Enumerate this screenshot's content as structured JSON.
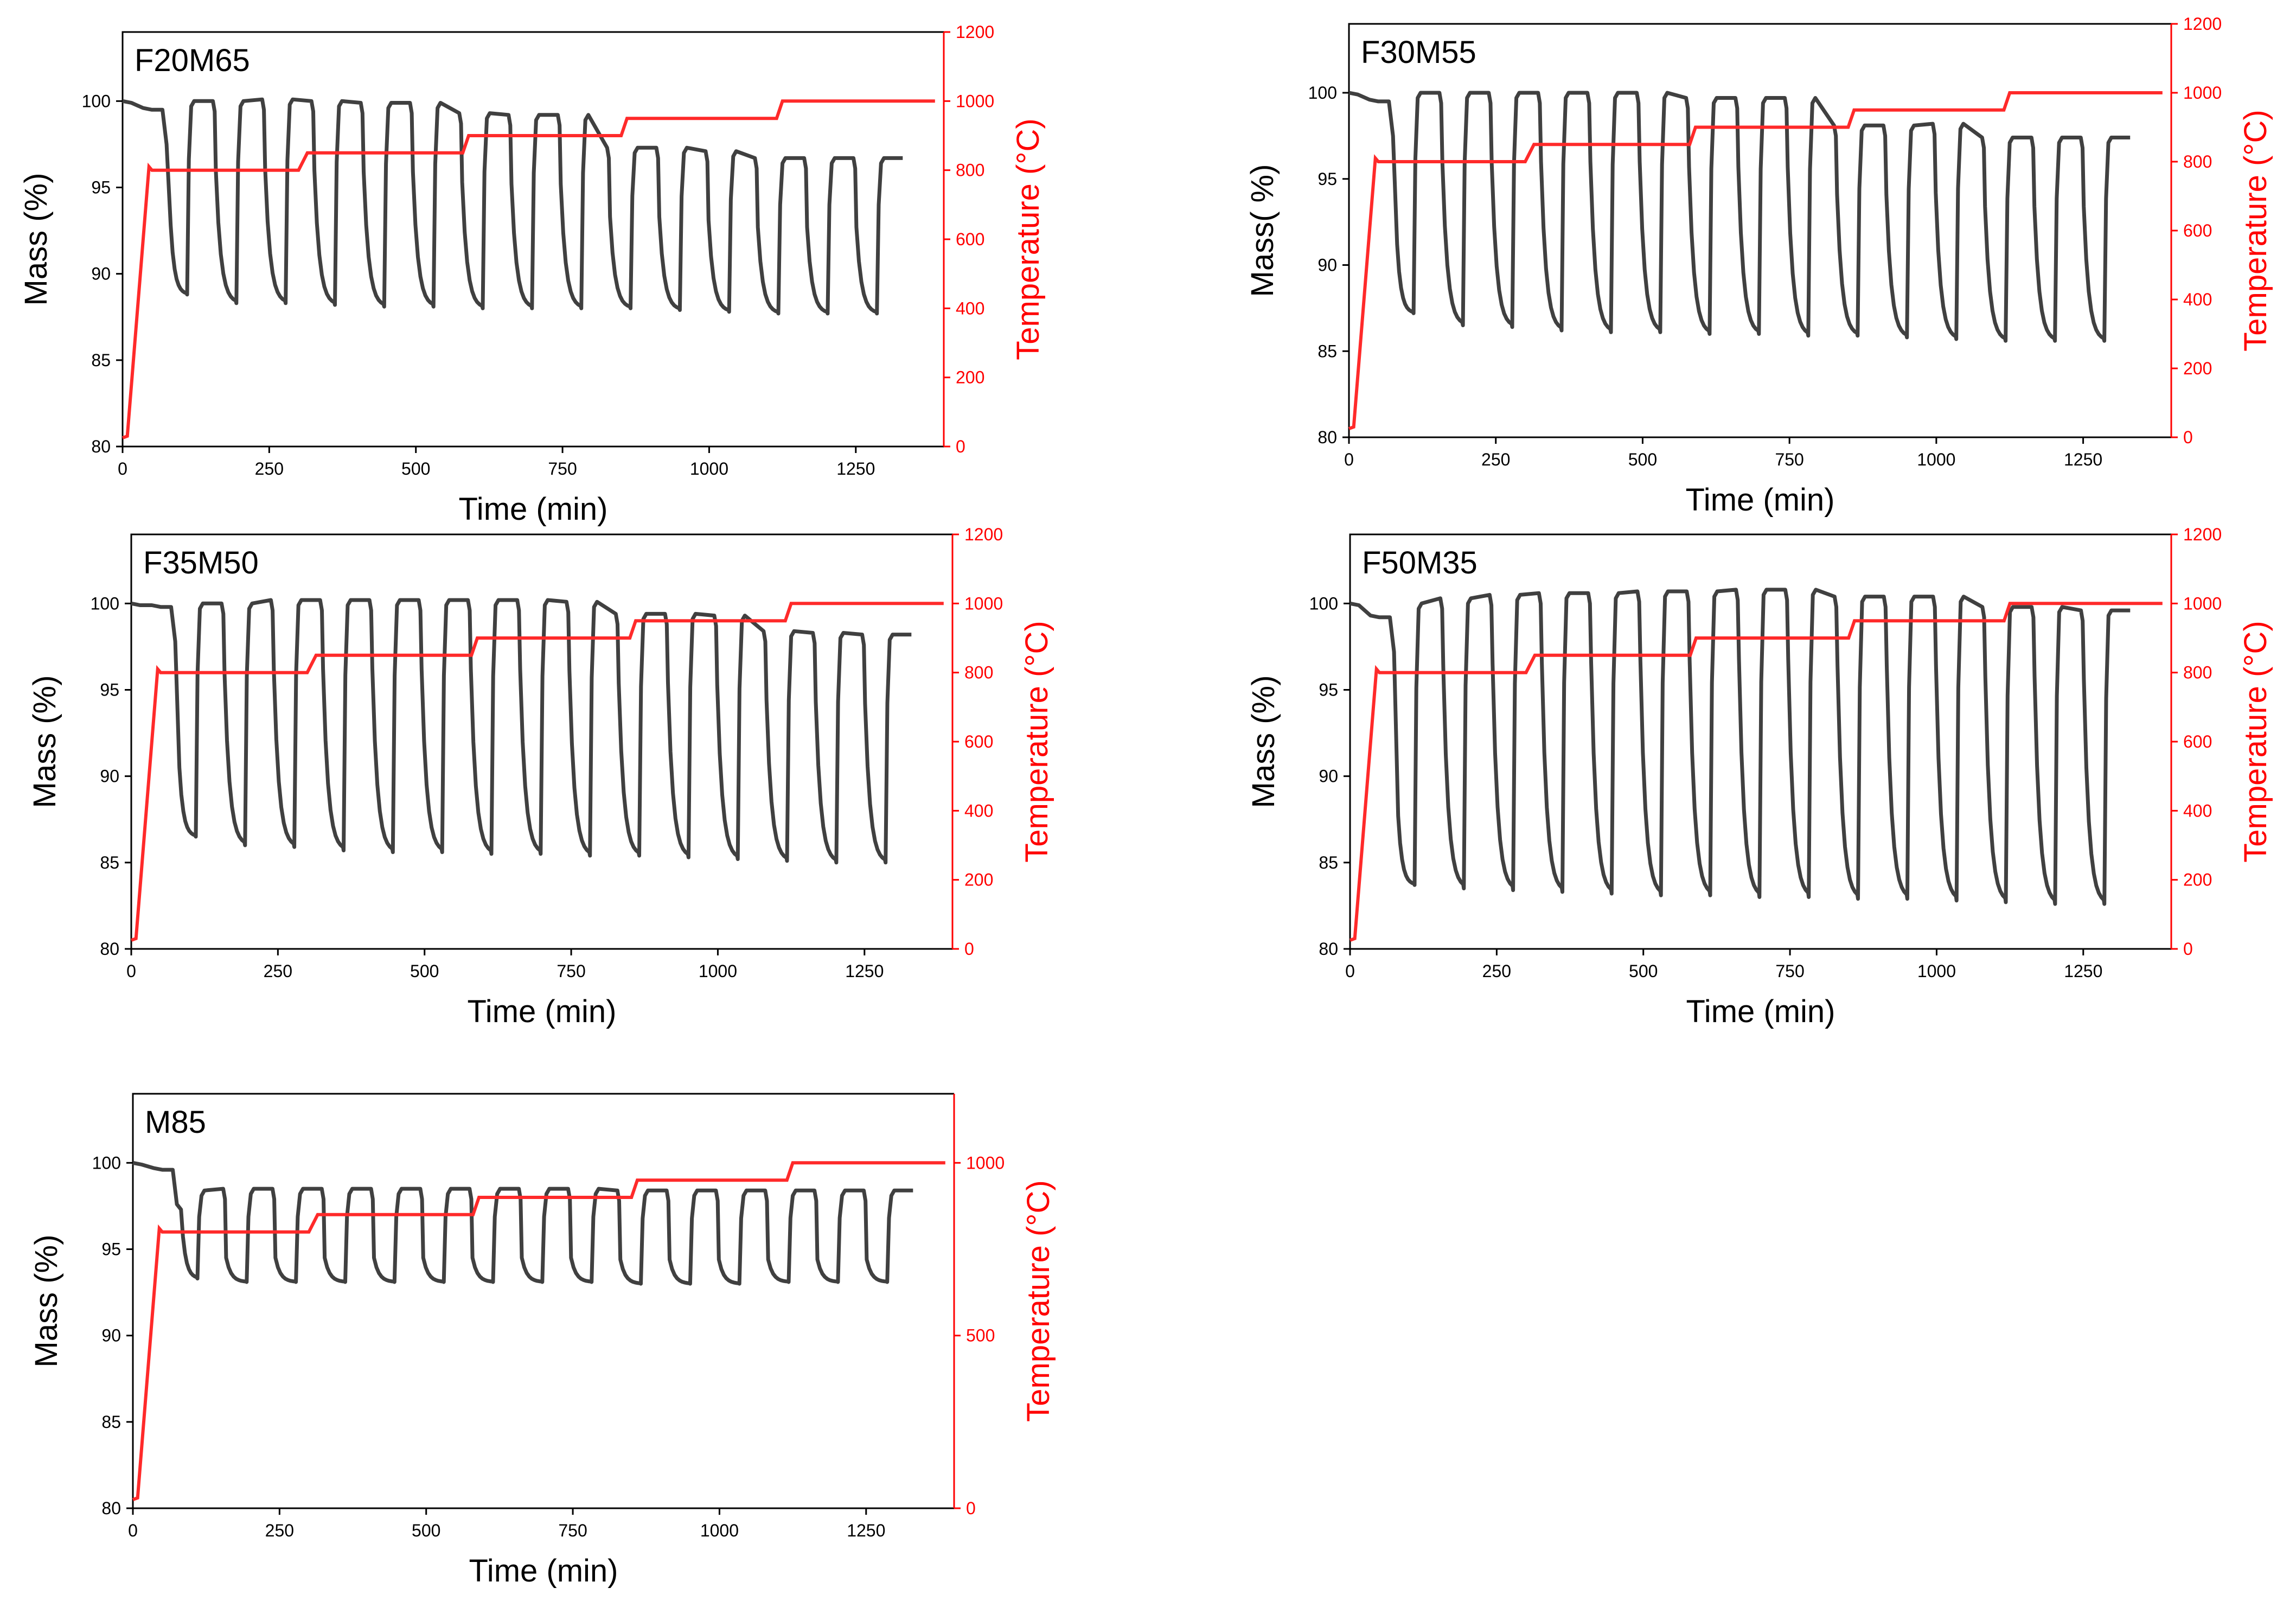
{
  "colors": {
    "mass_series": "#404040",
    "temperature_series": "#ff2a2a",
    "frame": "#000000",
    "temp_axis": "#ff0000"
  },
  "chart_data": [
    {
      "type": "line",
      "label": "F20M65",
      "xlabel": "Time (min)",
      "ylabel": "Mass (%)",
      "y2label": "Temperature (°C)",
      "xlim": [
        0,
        1400
      ],
      "ylim": [
        80,
        104
      ],
      "y2lim": [
        0,
        1200
      ],
      "xticks": [
        0,
        250,
        500,
        750,
        1000,
        1250
      ],
      "yticks": [
        80,
        85,
        90,
        95,
        100
      ],
      "y2ticks": [
        0,
        200,
        400,
        600,
        800,
        1000,
        1200
      ],
      "series": [
        {
          "name": "Mass",
          "axis": "left",
          "cycles": 15,
          "initial": 100,
          "mass_before_cycling": 99.5,
          "cycle_min": [
            88.8,
            88.3,
            88.3,
            88.2,
            88.1,
            88.1,
            88.0,
            88.0,
            88.0,
            88.0,
            87.9,
            87.8,
            87.7,
            87.7,
            87.7
          ],
          "cycle_max": [
            100.0,
            100.0,
            100.1,
            100.0,
            99.9,
            99.9,
            99.3,
            99.2,
            99.2,
            97.3,
            97.3,
            97.1,
            96.7,
            96.7,
            96.7
          ]
        },
        {
          "name": "Temperature",
          "axis": "right",
          "x": [
            0,
            8,
            45,
            50,
            300,
            315,
            580,
            590,
            850,
            860,
            1115,
            1125,
            1385
          ],
          "y": [
            25,
            30,
            810,
            800,
            800,
            850,
            850,
            900,
            900,
            950,
            950,
            1000,
            1000
          ]
        }
      ]
    },
    {
      "type": "line",
      "label": "F30M55",
      "xlabel": "Time (min)",
      "ylabel": "Mass( %)",
      "y2label": "Temperature (°C)",
      "xlim": [
        0,
        1400
      ],
      "ylim": [
        80,
        104
      ],
      "y2lim": [
        0,
        1200
      ],
      "xticks": [
        0,
        250,
        500,
        750,
        1000,
        1250
      ],
      "yticks": [
        80,
        85,
        90,
        95,
        100
      ],
      "y2ticks": [
        0,
        200,
        400,
        600,
        800,
        1000,
        1200
      ],
      "series": [
        {
          "name": "Mass",
          "axis": "left",
          "cycles": 15,
          "initial": 100,
          "mass_before_cycling": 99.5,
          "cycle_min": [
            87.2,
            86.5,
            86.4,
            86.2,
            86.1,
            86.1,
            86.0,
            86.0,
            85.9,
            85.9,
            85.8,
            85.7,
            85.6,
            85.6,
            85.6
          ],
          "cycle_max": [
            100.0,
            100.0,
            100.0,
            100.0,
            100.0,
            100.0,
            99.7,
            99.7,
            99.7,
            98.1,
            98.1,
            98.2,
            97.4,
            97.4,
            97.4
          ]
        },
        {
          "name": "Temperature",
          "axis": "right",
          "x": [
            0,
            8,
            45,
            50,
            300,
            315,
            580,
            590,
            850,
            860,
            1115,
            1125,
            1385
          ],
          "y": [
            25,
            30,
            810,
            800,
            800,
            850,
            850,
            900,
            900,
            950,
            950,
            1000,
            1000
          ]
        }
      ]
    },
    {
      "type": "line",
      "label": "F35M50",
      "xlabel": "Time (min)",
      "ylabel": "Mass (%)",
      "y2label": "Temperature (°C)",
      "xlim": [
        0,
        1400
      ],
      "ylim": [
        80,
        104
      ],
      "y2lim": [
        0,
        1200
      ],
      "xticks": [
        0,
        250,
        500,
        750,
        1000,
        1250
      ],
      "yticks": [
        80,
        85,
        90,
        95,
        100
      ],
      "y2ticks": [
        0,
        200,
        400,
        600,
        800,
        1000,
        1200
      ],
      "series": [
        {
          "name": "Mass",
          "axis": "left",
          "cycles": 15,
          "initial": 100,
          "mass_before_cycling": 99.8,
          "cycle_min": [
            86.5,
            86.0,
            85.9,
            85.7,
            85.6,
            85.6,
            85.5,
            85.5,
            85.4,
            85.4,
            85.3,
            85.2,
            85.1,
            85.0,
            85.0
          ],
          "cycle_max": [
            100.0,
            100.0,
            100.2,
            100.2,
            100.2,
            100.2,
            100.2,
            100.2,
            100.1,
            99.4,
            99.4,
            99.3,
            98.4,
            98.3,
            98.2
          ]
        },
        {
          "name": "Temperature",
          "axis": "right",
          "x": [
            0,
            8,
            45,
            50,
            300,
            315,
            580,
            590,
            850,
            860,
            1115,
            1125,
            1385
          ],
          "y": [
            25,
            30,
            810,
            800,
            800,
            850,
            850,
            900,
            900,
            950,
            950,
            1000,
            1000
          ]
        }
      ]
    },
    {
      "type": "line",
      "label": "F50M35",
      "xlabel": "Time (min)",
      "ylabel": "Mass (%)",
      "y2label": "Temperature (°C)",
      "xlim": [
        0,
        1400
      ],
      "ylim": [
        80,
        104
      ],
      "y2lim": [
        0,
        1200
      ],
      "xticks": [
        0,
        250,
        500,
        750,
        1000,
        1250
      ],
      "yticks": [
        80,
        85,
        90,
        95,
        100
      ],
      "y2ticks": [
        0,
        200,
        400,
        600,
        800,
        1000,
        1200
      ],
      "series": [
        {
          "name": "Mass",
          "axis": "left",
          "cycles": 15,
          "initial": 100,
          "mass_before_cycling": 99.2,
          "cycle_min": [
            83.7,
            83.5,
            83.4,
            83.3,
            83.2,
            83.1,
            83.1,
            83.0,
            83.0,
            82.9,
            82.9,
            82.8,
            82.7,
            82.6,
            82.6
          ],
          "cycle_max": [
            100.0,
            100.3,
            100.5,
            100.6,
            100.6,
            100.7,
            100.7,
            100.8,
            100.8,
            100.4,
            100.4,
            100.4,
            99.8,
            99.8,
            99.6
          ]
        },
        {
          "name": "Temperature",
          "axis": "right",
          "x": [
            0,
            8,
            45,
            50,
            300,
            315,
            580,
            590,
            850,
            860,
            1115,
            1125,
            1385
          ],
          "y": [
            25,
            30,
            810,
            800,
            800,
            850,
            850,
            900,
            900,
            950,
            950,
            1000,
            1000
          ]
        }
      ]
    },
    {
      "type": "line",
      "label": "M85",
      "xlabel": "Time (min)",
      "ylabel": "Mass (%)",
      "y2label": "Temperature (°C)",
      "xlim": [
        0,
        1400
      ],
      "ylim": [
        80,
        104
      ],
      "y2lim": [
        0,
        1200
      ],
      "xticks": [
        0,
        250,
        500,
        750,
        1000,
        1250
      ],
      "yticks": [
        80,
        85,
        90,
        95,
        100
      ],
      "y2ticks": [
        0,
        500,
        1000
      ],
      "series": [
        {
          "name": "Mass",
          "axis": "left",
          "cycles": 15,
          "initial": 100,
          "mass_before_cycling": 99.6,
          "cycle_min": [
            93.3,
            93.1,
            93.1,
            93.1,
            93.1,
            93.1,
            93.1,
            93.1,
            93.1,
            93.0,
            93.0,
            93.0,
            93.1,
            93.1,
            93.1
          ],
          "cycle_max": [
            98.4,
            98.5,
            98.5,
            98.5,
            98.5,
            98.5,
            98.5,
            98.5,
            98.5,
            98.4,
            98.4,
            98.4,
            98.4,
            98.4,
            98.4
          ]
        },
        {
          "name": "Temperature",
          "axis": "right",
          "x": [
            0,
            8,
            45,
            50,
            300,
            315,
            580,
            590,
            850,
            860,
            1115,
            1125,
            1385
          ],
          "y": [
            25,
            30,
            810,
            800,
            800,
            850,
            850,
            900,
            900,
            950,
            950,
            1000,
            1000
          ]
        }
      ]
    }
  ]
}
